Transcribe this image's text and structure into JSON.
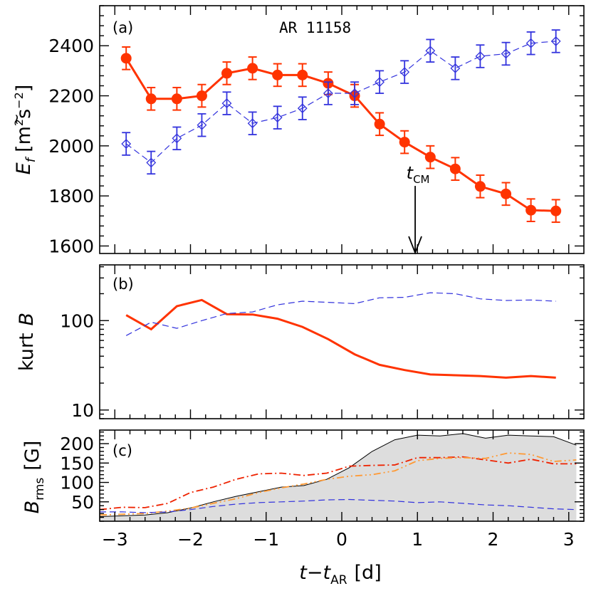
{
  "figure": {
    "xlabel": "t−t",
    "xlabel_sub": "AR",
    "xlabel_unit": "[d]",
    "x_ticks": [
      -3,
      -2,
      -1,
      0,
      1,
      2,
      3
    ],
    "x_tick_labels": [
      "−3",
      "−2",
      "−1",
      "0",
      "1",
      "2",
      "3"
    ]
  },
  "chart_data": [
    {
      "id": "a",
      "type": "line",
      "panel_label": "(a)",
      "annotation": "AR 11158",
      "ylabel": "E",
      "ylabel_sub": "f",
      "ylabel_unit_open": "[m",
      "ylabel_unit_sup1": "2",
      "ylabel_unit_mid": "s",
      "ylabel_unit_sup2": "−2",
      "ylabel_unit_close": "]",
      "xlim": [
        -3.2,
        3.2
      ],
      "ylim": [
        1570,
        2560
      ],
      "y_ticks": [
        1600,
        1800,
        2000,
        2200,
        2400
      ],
      "y_tick_labels": [
        "1600",
        "1800",
        "2000",
        "2200",
        "2400"
      ],
      "marker_label": "t",
      "marker_label_sub": "CM",
      "marker_x": 0.97,
      "marker_y_top": 1840,
      "series": [
        {
          "style": "solid-dots",
          "color": "#ff3300",
          "x": [
            -2.85,
            -2.52,
            -2.18,
            -1.85,
            -1.52,
            -1.18,
            -0.85,
            -0.52,
            -0.18,
            0.17,
            0.5,
            0.83,
            1.17,
            1.5,
            1.83,
            2.17,
            2.5,
            2.83
          ],
          "y": [
            2350,
            2188,
            2188,
            2200,
            2290,
            2310,
            2283,
            2283,
            2250,
            2200,
            2087,
            2015,
            1955,
            1908,
            1838,
            1808,
            1743,
            1740
          ],
          "err": [
            45,
            45,
            45,
            45,
            45,
            45,
            45,
            45,
            45,
            45,
            45,
            45,
            45,
            45,
            45,
            45,
            45,
            45
          ]
        },
        {
          "style": "dashed-diamonds",
          "color": "#3333dd",
          "x": [
            -2.85,
            -2.52,
            -2.18,
            -1.85,
            -1.52,
            -1.18,
            -0.85,
            -0.52,
            -0.18,
            0.17,
            0.5,
            0.83,
            1.17,
            1.5,
            1.83,
            2.17,
            2.5,
            2.83
          ],
          "y": [
            2008,
            1933,
            2030,
            2083,
            2170,
            2090,
            2113,
            2150,
            2210,
            2210,
            2255,
            2295,
            2380,
            2310,
            2358,
            2368,
            2410,
            2418
          ],
          "err": [
            45,
            45,
            45,
            45,
            45,
            45,
            45,
            45,
            45,
            45,
            45,
            45,
            45,
            45,
            45,
            45,
            45,
            45
          ]
        }
      ]
    },
    {
      "id": "b",
      "type": "line",
      "panel_label": "(b)",
      "ylabel": "kurt",
      "ylabel_var": "B",
      "yscale": "log",
      "xlim": [
        -3.2,
        3.2
      ],
      "ylim": [
        8,
        420
      ],
      "y_ticks": [
        10,
        100
      ],
      "y_tick_labels": [
        "10",
        "100"
      ],
      "series": [
        {
          "style": "solid",
          "color": "#ff3300",
          "x": [
            -2.85,
            -2.52,
            -2.18,
            -1.85,
            -1.52,
            -1.18,
            -0.85,
            -0.52,
            -0.18,
            0.17,
            0.5,
            0.83,
            1.17,
            1.5,
            1.83,
            2.17,
            2.5,
            2.83
          ],
          "y": [
            115,
            80,
            145,
            170,
            118,
            117,
            105,
            85,
            62,
            42,
            32,
            28,
            25,
            24.5,
            24,
            23,
            24,
            23
          ]
        },
        {
          "style": "dashed",
          "color": "#3333dd",
          "x": [
            -2.85,
            -2.52,
            -2.18,
            -1.85,
            -1.52,
            -1.18,
            -0.85,
            -0.52,
            -0.18,
            0.17,
            0.5,
            0.83,
            1.17,
            1.5,
            1.83,
            2.17,
            2.5,
            2.83
          ],
          "y": [
            68,
            96,
            82,
            100,
            120,
            125,
            150,
            165,
            160,
            155,
            180,
            182,
            205,
            200,
            175,
            168,
            170,
            165
          ]
        }
      ]
    },
    {
      "id": "c",
      "type": "area",
      "panel_label": "(c)",
      "ylabel": "B",
      "ylabel_sub": "rms",
      "ylabel_unit": "[G]",
      "xlim": [
        -3.2,
        3.2
      ],
      "ylim": [
        0,
        235
      ],
      "y_ticks": [
        50,
        100,
        150,
        200
      ],
      "y_tick_labels": [
        "50",
        "100",
        "150",
        "200"
      ],
      "series": [
        {
          "style": "filled-gray",
          "color": "#dddddd",
          "x": [
            -3.2,
            -2.9,
            -2.6,
            -2.3,
            -2.0,
            -1.7,
            -1.4,
            -1.1,
            -0.8,
            -0.5,
            -0.2,
            0.1,
            0.4,
            0.7,
            1.0,
            1.3,
            1.6,
            1.9,
            2.2,
            2.5,
            2.8,
            3.1
          ],
          "y": [
            12,
            14,
            16,
            22,
            34,
            50,
            64,
            76,
            88,
            92,
            108,
            138,
            180,
            210,
            222,
            220,
            226,
            214,
            222,
            220,
            218,
            196
          ]
        },
        {
          "style": "dashdot",
          "color": "#ee2200",
          "x": [
            -3.2,
            -2.9,
            -2.6,
            -2.3,
            -2.0,
            -1.7,
            -1.4,
            -1.1,
            -0.8,
            -0.5,
            -0.2,
            0.1,
            0.4,
            0.7,
            1.0,
            1.3,
            1.6,
            1.9,
            2.2,
            2.5,
            2.8,
            3.1
          ],
          "y": [
            30,
            36,
            35,
            46,
            74,
            88,
            108,
            122,
            124,
            118,
            124,
            142,
            144,
            145,
            164,
            164,
            166,
            158,
            150,
            160,
            148,
            148
          ]
        },
        {
          "style": "dashdotdot",
          "color": "#ff9933",
          "x": [
            -3.2,
            -2.9,
            -2.6,
            -2.3,
            -2.0,
            -1.7,
            -1.4,
            -1.1,
            -0.8,
            -0.5,
            -0.2,
            0.1,
            0.4,
            0.7,
            1.0,
            1.3,
            1.6,
            1.9,
            2.2,
            2.5,
            2.8,
            3.1
          ],
          "y": [
            16,
            18,
            20,
            26,
            34,
            46,
            58,
            74,
            86,
            96,
            108,
            116,
            120,
            130,
            156,
            162,
            164,
            162,
            176,
            172,
            154,
            158
          ]
        },
        {
          "style": "dashed",
          "color": "#3333dd",
          "x": [
            -3.2,
            -2.9,
            -2.6,
            -2.3,
            -2.0,
            -1.7,
            -1.4,
            -1.1,
            -0.8,
            -0.5,
            -0.2,
            0.1,
            0.4,
            0.7,
            1.0,
            1.3,
            1.6,
            1.9,
            2.2,
            2.5,
            2.8,
            3.1
          ],
          "y": [
            24,
            24,
            22,
            24,
            30,
            38,
            44,
            48,
            50,
            52,
            55,
            56,
            54,
            52,
            48,
            50,
            46,
            42,
            40,
            36,
            32,
            30
          ]
        }
      ]
    }
  ]
}
